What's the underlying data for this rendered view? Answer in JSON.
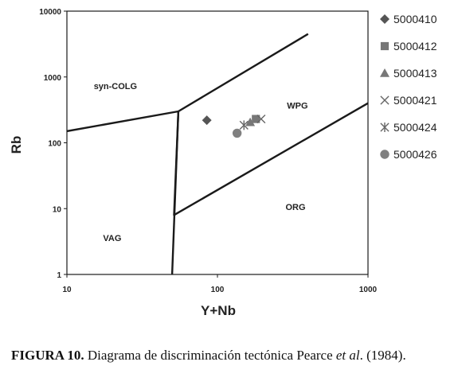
{
  "chart_data": {
    "type": "scatter",
    "xscale": "log",
    "yscale": "log",
    "xlim": [
      10,
      1000
    ],
    "ylim": [
      1,
      10000
    ],
    "xlabel": "Y+Nb",
    "ylabel": "Rb",
    "x_ticks": [
      10,
      100,
      1000
    ],
    "x_tick_labels": [
      "10",
      "100",
      "1000"
    ],
    "y_ticks": [
      1,
      10,
      100,
      1000,
      10000
    ],
    "y_tick_labels": [
      "1",
      "10",
      "100",
      "1000",
      "10000"
    ],
    "grid": false,
    "legend_position": "right",
    "fields": [
      {
        "label": "syn-COLG",
        "x": 21,
        "y": 650
      },
      {
        "label": "WPG",
        "x": 340,
        "y": 330
      },
      {
        "label": "ORG",
        "x": 330,
        "y": 9.5
      },
      {
        "label": "VAG",
        "x": 20,
        "y": 3.2
      }
    ],
    "boundaries": [
      [
        [
          10,
          150
        ],
        [
          55,
          300
        ],
        [
          400,
          4500
        ]
      ],
      [
        [
          55,
          300
        ],
        [
          51.5,
          8
        ],
        [
          1000,
          400
        ]
      ],
      [
        [
          55,
          300
        ],
        [
          50,
          1
        ]
      ]
    ],
    "series": [
      {
        "name": "5000410",
        "marker": "diamond",
        "color": "#555555",
        "points": [
          [
            85,
            220
          ]
        ]
      },
      {
        "name": "5000412",
        "marker": "square",
        "color": "#777777",
        "points": [
          [
            180,
            230
          ]
        ]
      },
      {
        "name": "5000413",
        "marker": "triangle",
        "color": "#777777",
        "points": [
          [
            165,
            205
          ]
        ]
      },
      {
        "name": "5000421",
        "marker": "x",
        "color": "#666666",
        "points": [
          [
            195,
            230
          ]
        ]
      },
      {
        "name": "5000424",
        "marker": "asterisk",
        "color": "#666666",
        "points": [
          [
            150,
            185
          ]
        ]
      },
      {
        "name": "5000426",
        "marker": "circle",
        "color": "#808080",
        "points": [
          [
            135,
            140
          ]
        ]
      }
    ]
  },
  "caption": {
    "label": "FIGURA 10.",
    "text_before": " Diagrama de discriminación tectónica Pearce ",
    "italic": "et al",
    "text_after": ". (1984)."
  }
}
